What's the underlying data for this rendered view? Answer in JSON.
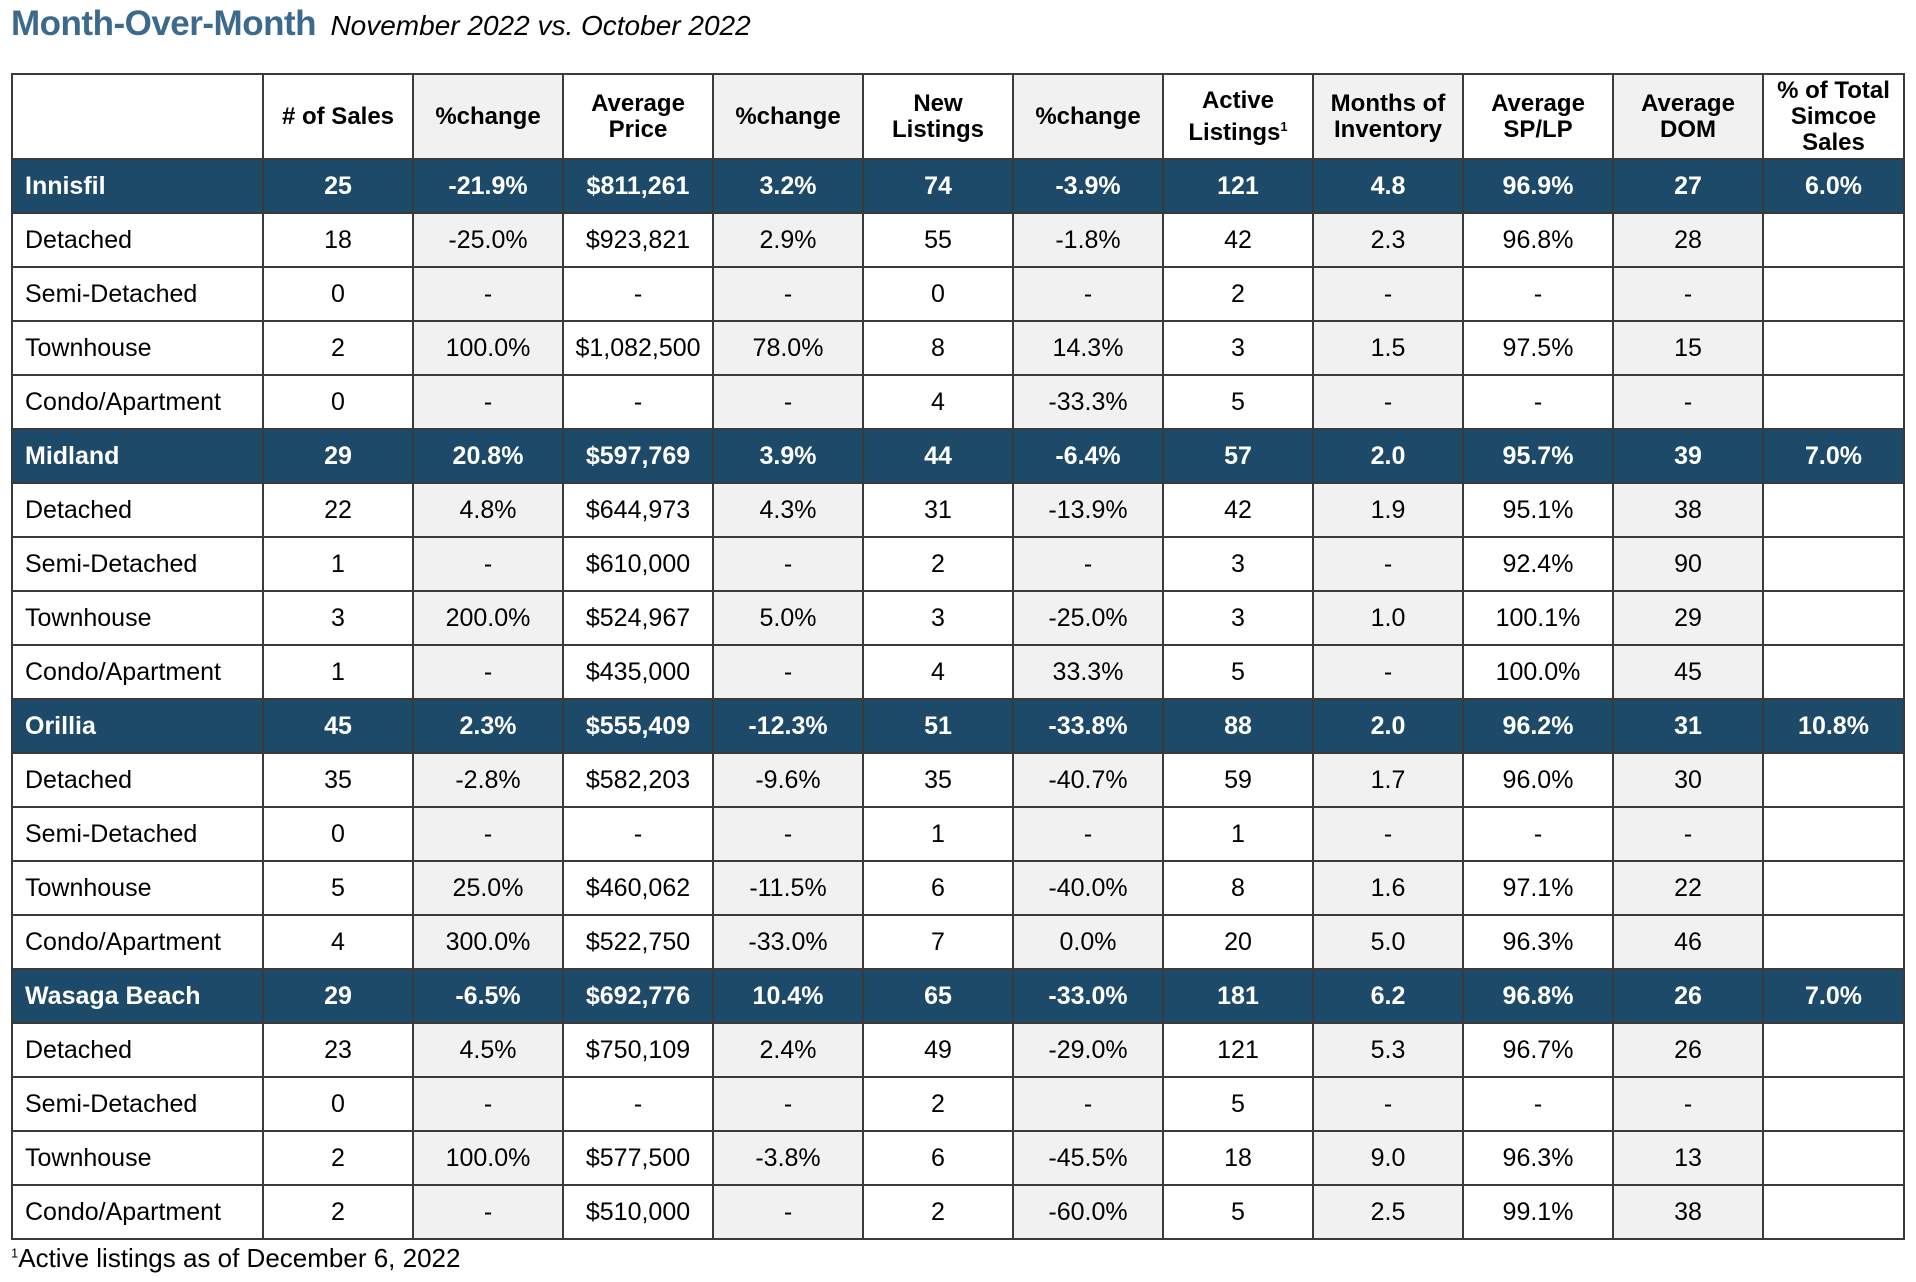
{
  "title": {
    "main": "Month-Over-Month",
    "sub": "November 2022 vs. October 2022"
  },
  "table": {
    "headers": [
      {
        "label": ""
      },
      {
        "label": "# of Sales"
      },
      {
        "label": "%change"
      },
      {
        "label": "Average Price"
      },
      {
        "label": "%change"
      },
      {
        "label": "New Listings"
      },
      {
        "label": "%change"
      },
      {
        "label": "Active Listings",
        "sup": "1"
      },
      {
        "label": "Months of Inventory"
      },
      {
        "label": "Average SP/LP"
      },
      {
        "label": "Average DOM"
      },
      {
        "label": "% of Total Simcoe Sales"
      }
    ],
    "groups": [
      {
        "summary": [
          "Innisfil",
          "25",
          "-21.9%",
          "$811,261",
          "3.2%",
          "74",
          "-3.9%",
          "121",
          "4.8",
          "96.9%",
          "27",
          "6.0%"
        ],
        "rows": [
          [
            "Detached",
            "18",
            "-25.0%",
            "$923,821",
            "2.9%",
            "55",
            "-1.8%",
            "42",
            "2.3",
            "96.8%",
            "28",
            ""
          ],
          [
            "Semi-Detached",
            "0",
            "-",
            "-",
            "-",
            "0",
            "-",
            "2",
            "-",
            "-",
            "-",
            ""
          ],
          [
            "Townhouse",
            "2",
            "100.0%",
            "$1,082,500",
            "78.0%",
            "8",
            "14.3%",
            "3",
            "1.5",
            "97.5%",
            "15",
            ""
          ],
          [
            "Condo/Apartment",
            "0",
            "-",
            "-",
            "-",
            "4",
            "-33.3%",
            "5",
            "-",
            "-",
            "-",
            ""
          ]
        ]
      },
      {
        "summary": [
          "Midland",
          "29",
          "20.8%",
          "$597,769",
          "3.9%",
          "44",
          "-6.4%",
          "57",
          "2.0",
          "95.7%",
          "39",
          "7.0%"
        ],
        "rows": [
          [
            "Detached",
            "22",
            "4.8%",
            "$644,973",
            "4.3%",
            "31",
            "-13.9%",
            "42",
            "1.9",
            "95.1%",
            "38",
            ""
          ],
          [
            "Semi-Detached",
            "1",
            "-",
            "$610,000",
            "-",
            "2",
            "-",
            "3",
            "-",
            "92.4%",
            "90",
            ""
          ],
          [
            "Townhouse",
            "3",
            "200.0%",
            "$524,967",
            "5.0%",
            "3",
            "-25.0%",
            "3",
            "1.0",
            "100.1%",
            "29",
            ""
          ],
          [
            "Condo/Apartment",
            "1",
            "-",
            "$435,000",
            "-",
            "4",
            "33.3%",
            "5",
            "-",
            "100.0%",
            "45",
            ""
          ]
        ]
      },
      {
        "summary": [
          "Orillia",
          "45",
          "2.3%",
          "$555,409",
          "-12.3%",
          "51",
          "-33.8%",
          "88",
          "2.0",
          "96.2%",
          "31",
          "10.8%"
        ],
        "rows": [
          [
            "Detached",
            "35",
            "-2.8%",
            "$582,203",
            "-9.6%",
            "35",
            "-40.7%",
            "59",
            "1.7",
            "96.0%",
            "30",
            ""
          ],
          [
            "Semi-Detached",
            "0",
            "-",
            "-",
            "-",
            "1",
            "-",
            "1",
            "-",
            "-",
            "-",
            ""
          ],
          [
            "Townhouse",
            "5",
            "25.0%",
            "$460,062",
            "-11.5%",
            "6",
            "-40.0%",
            "8",
            "1.6",
            "97.1%",
            "22",
            ""
          ],
          [
            "Condo/Apartment",
            "4",
            "300.0%",
            "$522,750",
            "-33.0%",
            "7",
            "0.0%",
            "20",
            "5.0",
            "96.3%",
            "46",
            ""
          ]
        ]
      },
      {
        "summary": [
          "Wasaga Beach",
          "29",
          "-6.5%",
          "$692,776",
          "10.4%",
          "65",
          "-33.0%",
          "181",
          "6.2",
          "96.8%",
          "26",
          "7.0%"
        ],
        "rows": [
          [
            "Detached",
            "23",
            "4.5%",
            "$750,109",
            "2.4%",
            "49",
            "-29.0%",
            "121",
            "5.3",
            "96.7%",
            "26",
            ""
          ],
          [
            "Semi-Detached",
            "0",
            "-",
            "-",
            "-",
            "2",
            "-",
            "5",
            "-",
            "-",
            "-",
            ""
          ],
          [
            "Townhouse",
            "2",
            "100.0%",
            "$577,500",
            "-3.8%",
            "6",
            "-45.5%",
            "18",
            "9.0",
            "96.3%",
            "13",
            ""
          ],
          [
            "Condo/Apartment",
            "2",
            "-",
            "$510,000",
            "-",
            "2",
            "-60.0%",
            "5",
            "2.5",
            "99.1%",
            "38",
            ""
          ]
        ]
      }
    ]
  },
  "footnote": {
    "marker": "1",
    "text": "Active listings as of December 6, 2022"
  },
  "colors": {
    "title": "#3c6a8c",
    "group_row": "#1d4a68",
    "shaded_column": "#f1f1f1"
  }
}
